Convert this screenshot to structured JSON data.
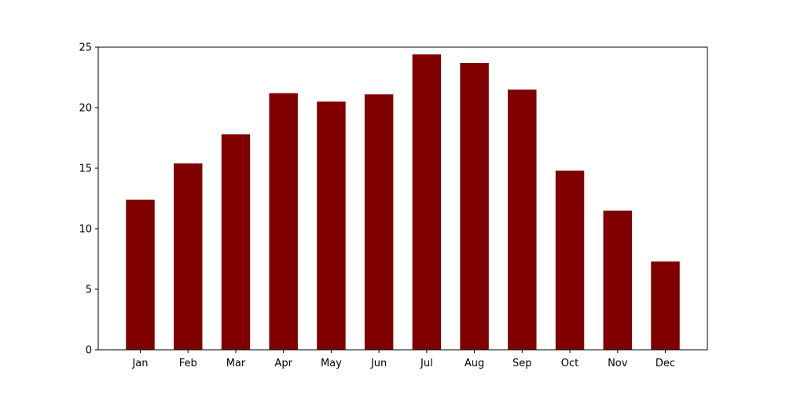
{
  "chart_data": {
    "type": "bar",
    "categories": [
      "Jan",
      "Feb",
      "Mar",
      "Apr",
      "May",
      "Jun",
      "Jul",
      "Aug",
      "Sep",
      "Oct",
      "Nov",
      "Dec"
    ],
    "values": [
      12.4,
      15.4,
      17.8,
      21.2,
      20.5,
      21.1,
      24.4,
      23.7,
      21.5,
      14.8,
      11.5,
      7.3
    ],
    "ylim": [
      0,
      25
    ],
    "yticks": [
      0,
      5,
      10,
      15,
      20,
      25
    ],
    "grid": false,
    "bar_color": "#800000"
  }
}
